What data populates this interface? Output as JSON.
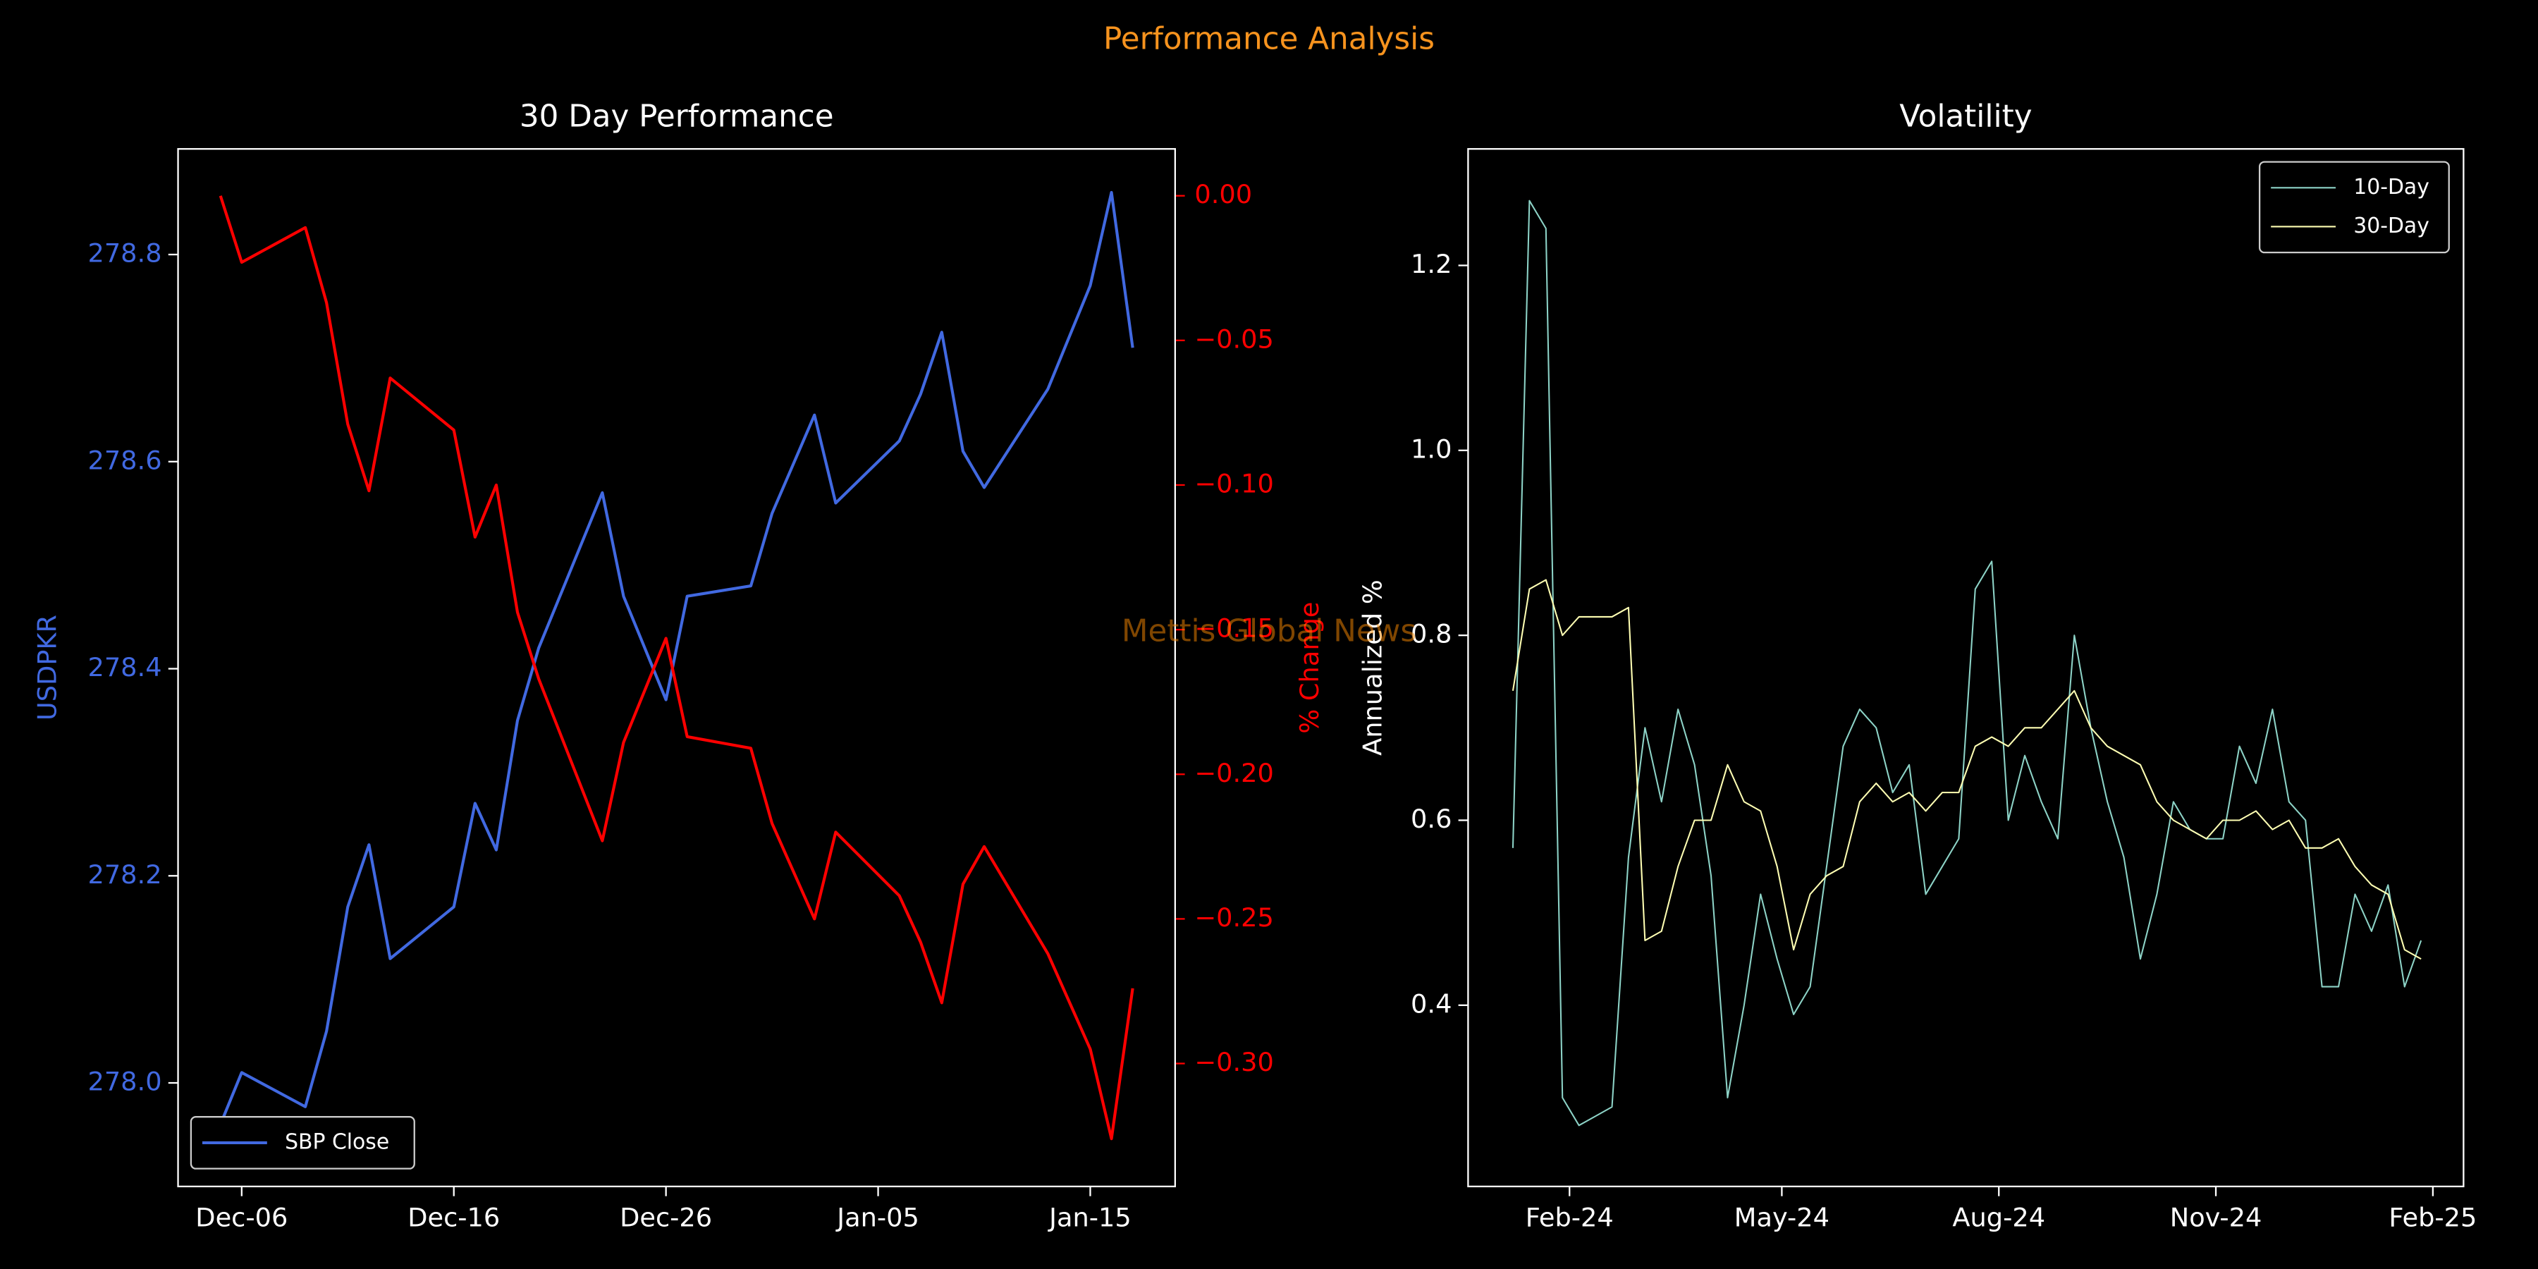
{
  "title": "Performance Analysis",
  "watermark": "Mettis Global News",
  "chart_data": [
    {
      "type": "line",
      "title": "30 Day Performance",
      "ylabel": "USDPKR",
      "y2label": "% Change",
      "legend": "lower left",
      "x": [
        "Dec-05",
        "Dec-06",
        "Dec-09",
        "Dec-10",
        "Dec-11",
        "Dec-12",
        "Dec-13",
        "Dec-16",
        "Dec-17",
        "Dec-18",
        "Dec-19",
        "Dec-20",
        "Dec-23",
        "Dec-24",
        "Dec-26",
        "Dec-27",
        "Dec-30",
        "Dec-31",
        "Jan-02",
        "Jan-03",
        "Jan-06",
        "Jan-07",
        "Jan-08",
        "Jan-09",
        "Jan-10",
        "Jan-13",
        "Jan-15",
        "Jan-16",
        "Jan-17"
      ],
      "xlim": [
        "Dec-03",
        "Jan-19"
      ],
      "xticks": [
        "Dec-06",
        "Dec-16",
        "Dec-26",
        "Jan-05",
        "Jan-15"
      ],
      "ylim": [
        277.9,
        278.902
      ],
      "yticks": [
        {
          "value": 278,
          "label": "278.0"
        },
        278.2,
        278.4,
        278.6,
        278.8
      ],
      "y2lim": [
        -0.3425,
        0.0162
      ],
      "y2ticks": [
        {
          "value": 0,
          "label": "0.00"
        },
        {
          "value": -0.05,
          "label": "−0.05"
        },
        {
          "value": -0.1,
          "label": "−0.10"
        },
        {
          "value": -0.15,
          "label": "−0.15"
        },
        {
          "value": -0.2,
          "label": "−0.20"
        },
        {
          "value": -0.25,
          "label": "−0.25"
        },
        {
          "value": -0.3,
          "label": "−0.30"
        }
      ],
      "series": [
        {
          "name": "SBP Close",
          "color": "#4169e1",
          "values": [
            277.96,
            278.01,
            277.977,
            278.05,
            278.17,
            278.23,
            278.12,
            278.17,
            278.27,
            278.225,
            278.35,
            278.42,
            278.57,
            278.47,
            278.37,
            278.47,
            278.48,
            278.55,
            278.645,
            278.56,
            278.62,
            278.665,
            278.725,
            278.61,
            278.575,
            278.67,
            278.77,
            278.86,
            278.71
          ]
        },
        {
          "color": "#ff0000",
          "axis": "y2",
          "values": [
            0,
            -0.023,
            -0.011,
            -0.037,
            -0.079,
            -0.102,
            -0.063,
            -0.081,
            -0.118,
            -0.1,
            -0.144,
            -0.167,
            -0.223,
            -0.189,
            -0.153,
            -0.187,
            -0.191,
            -0.217,
            -0.25,
            -0.22,
            -0.242,
            -0.258,
            -0.279,
            -0.238,
            -0.225,
            -0.262,
            -0.295,
            -0.326,
            -0.274
          ]
        }
      ]
    },
    {
      "type": "line",
      "title": "Volatility",
      "ylabel": "Annualized %",
      "legend": "upper right",
      "x": [
        "2024-01-08",
        "2024-01-15",
        "2024-01-22",
        "2024-01-29",
        "2024-02-05",
        "2024-02-12",
        "2024-02-19",
        "2024-02-26",
        "2024-03-04",
        "2024-03-11",
        "2024-03-18",
        "2024-03-25",
        "2024-04-01",
        "2024-04-08",
        "2024-04-15",
        "2024-04-22",
        "2024-04-29",
        "2024-05-06",
        "2024-05-13",
        "2024-05-20",
        "2024-05-27",
        "2024-06-03",
        "2024-06-10",
        "2024-06-17",
        "2024-06-24",
        "2024-07-01",
        "2024-07-08",
        "2024-07-15",
        "2024-07-22",
        "2024-07-29",
        "2024-08-05",
        "2024-08-12",
        "2024-08-19",
        "2024-08-26",
        "2024-09-02",
        "2024-09-09",
        "2024-09-16",
        "2024-09-23",
        "2024-09-30",
        "2024-10-07",
        "2024-10-14",
        "2024-10-21",
        "2024-10-28",
        "2024-11-04",
        "2024-11-11",
        "2024-11-18",
        "2024-11-25",
        "2024-12-02",
        "2024-12-09",
        "2024-12-16",
        "2024-12-23",
        "2024-12-30",
        "2025-01-06",
        "2025-01-13",
        "2025-01-20",
        "2025-01-27"
      ],
      "xlim": [
        "2023-12-20",
        "2025-02-14"
      ],
      "xticks": [
        {
          "value": "2024-02-01",
          "label": "Feb-24"
        },
        {
          "value": "2024-05-01",
          "label": "May-24"
        },
        {
          "value": "2024-08-01",
          "label": "Aug-24"
        },
        {
          "value": "2024-11-01",
          "label": "Nov-24"
        },
        {
          "value": "2025-02-01",
          "label": "Feb-25"
        }
      ],
      "ylim": [
        0.204,
        1.326
      ],
      "yticks": [
        0.4,
        0.6,
        0.8,
        {
          "value": 1,
          "label": "1.0"
        },
        1.2
      ],
      "series": [
        {
          "name": "10-Day",
          "color": "#8dd3c7",
          "values": [
            0.57,
            1.27,
            1.24,
            0.3,
            0.27,
            0.28,
            0.29,
            0.56,
            0.7,
            0.62,
            0.72,
            0.66,
            0.54,
            0.3,
            0.4,
            0.52,
            0.45,
            0.39,
            0.42,
            0.55,
            0.68,
            0.72,
            0.7,
            0.63,
            0.66,
            0.52,
            0.55,
            0.58,
            0.85,
            0.88,
            0.6,
            0.67,
            0.62,
            0.58,
            0.8,
            0.7,
            0.62,
            0.56,
            0.45,
            0.52,
            0.62,
            0.59,
            0.58,
            0.58,
            0.68,
            0.64,
            0.72,
            0.62,
            0.6,
            0.42,
            0.42,
            0.52,
            0.48,
            0.53,
            0.42,
            0.47
          ]
        },
        {
          "name": "30-Day",
          "color": "#ffffb3",
          "values": [
            0.74,
            0.85,
            0.86,
            0.8,
            0.82,
            0.82,
            0.82,
            0.83,
            0.47,
            0.48,
            0.55,
            0.6,
            0.6,
            0.66,
            0.62,
            0.61,
            0.55,
            0.46,
            0.52,
            0.54,
            0.55,
            0.62,
            0.64,
            0.62,
            0.63,
            0.61,
            0.63,
            0.63,
            0.68,
            0.69,
            0.68,
            0.7,
            0.7,
            0.72,
            0.74,
            0.7,
            0.68,
            0.67,
            0.66,
            0.62,
            0.6,
            0.59,
            0.58,
            0.6,
            0.6,
            0.61,
            0.59,
            0.6,
            0.57,
            0.57,
            0.58,
            0.55,
            0.53,
            0.52,
            0.46,
            0.45
          ]
        }
      ]
    }
  ]
}
